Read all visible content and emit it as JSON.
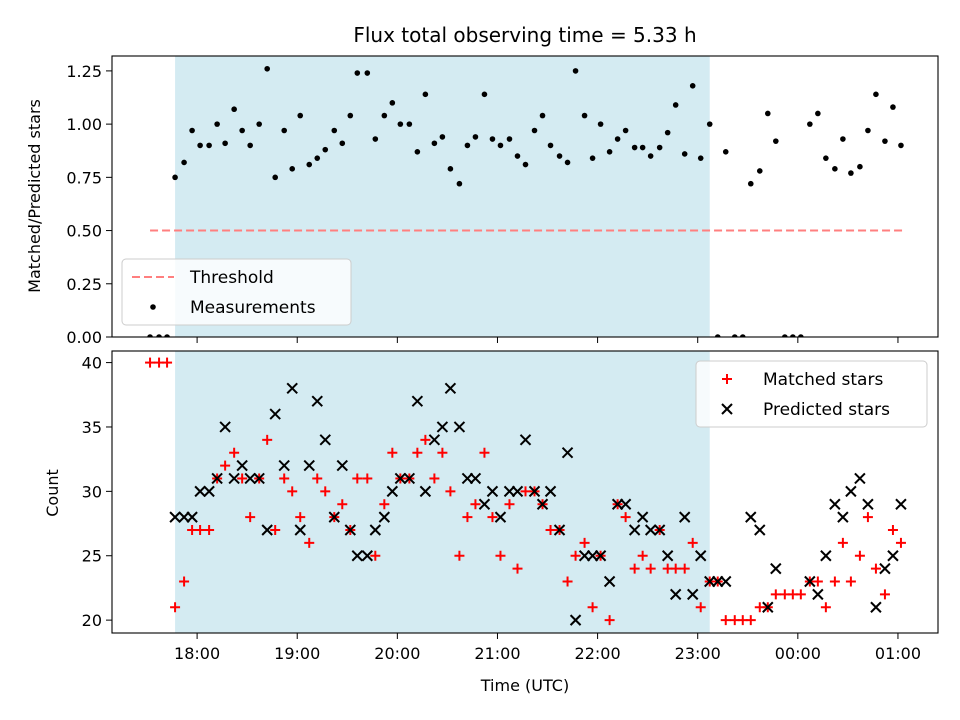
{
  "chart_data": [
    {
      "type": "scatter",
      "title": "Flux total observing time = 5.33 h",
      "ylabel": "Matched/Predicted stars",
      "ylim": [
        0,
        1.32
      ],
      "yticks": [
        0.0,
        0.25,
        0.5,
        0.75,
        1.0,
        1.25
      ],
      "ytick_labels": [
        "0.00",
        "0.25",
        "0.50",
        "0.75",
        "1.00",
        "1.25"
      ],
      "shaded_region": {
        "start": 17.78,
        "end": 23.12,
        "color": "#add8e6"
      },
      "threshold": {
        "value": 0.5,
        "start": 17.53,
        "end": 25.07,
        "color": "#ff7f7f",
        "label": "Threshold"
      },
      "legend": {
        "placement": "lower-left",
        "entries": [
          "Threshold",
          "Measurements"
        ]
      },
      "series": [
        {
          "name": "Measurements",
          "color": "#000000",
          "x": [
            17.53,
            17.62,
            17.7,
            17.78,
            17.87,
            17.95,
            18.03,
            18.12,
            18.2,
            18.28,
            18.37,
            18.45,
            18.53,
            18.62,
            18.7,
            18.78,
            18.87,
            18.95,
            19.03,
            19.12,
            19.2,
            19.28,
            19.37,
            19.45,
            19.53,
            19.6,
            19.7,
            19.78,
            19.87,
            19.95,
            20.03,
            20.12,
            20.2,
            20.28,
            20.37,
            20.45,
            20.53,
            20.62,
            20.7,
            20.78,
            20.87,
            20.95,
            21.03,
            21.12,
            21.2,
            21.28,
            21.37,
            21.45,
            21.53,
            21.62,
            21.7,
            21.78,
            21.87,
            21.95,
            22.03,
            22.12,
            22.2,
            22.28,
            22.37,
            22.45,
            22.53,
            22.62,
            22.7,
            22.78,
            22.87,
            22.95,
            23.03,
            23.12,
            23.2,
            23.28,
            23.37,
            23.45,
            23.53,
            23.62,
            23.7,
            23.78,
            23.87,
            23.95,
            24.03,
            24.12,
            24.2,
            24.28,
            24.37,
            24.45,
            24.53,
            24.62,
            24.7,
            24.78,
            24.87,
            24.95,
            25.03
          ],
          "y": [
            0,
            0,
            0,
            0.75,
            0.82,
            0.97,
            0.9,
            0.9,
            1.0,
            0.91,
            1.07,
            0.97,
            0.9,
            1.0,
            1.26,
            0.75,
            0.97,
            0.79,
            1.04,
            0.81,
            0.84,
            0.88,
            0.97,
            0.91,
            1.04,
            1.24,
            1.24,
            0.93,
            1.04,
            1.1,
            1.0,
            1.0,
            0.87,
            1.14,
            0.91,
            0.94,
            0.79,
            0.72,
            0.9,
            0.94,
            1.14,
            0.93,
            0.9,
            0.93,
            0.85,
            0.81,
            0.97,
            1.04,
            0.9,
            0.85,
            0.82,
            1.25,
            1.04,
            0.84,
            1.0,
            0.87,
            0.93,
            0.97,
            0.89,
            0.89,
            0.85,
            0.89,
            0.96,
            1.09,
            0.86,
            1.18,
            0.84,
            1.0,
            0,
            0.87,
            0,
            0,
            0.72,
            0.78,
            1.05,
            0.92,
            0,
            0,
            0,
            1.0,
            1.05,
            0.84,
            0.79,
            0.93,
            0.77,
            0.8,
            0.97,
            1.14,
            0.92,
            1.08,
            0.9
          ]
        }
      ]
    },
    {
      "type": "scatter",
      "xlabel": "Time (UTC)",
      "ylabel": "Count",
      "ylim": [
        19,
        40.9
      ],
      "yticks": [
        20,
        25,
        30,
        35,
        40
      ],
      "ytick_labels": [
        "20",
        "25",
        "30",
        "35",
        "40"
      ],
      "xlim": [
        17.15,
        25.4
      ],
      "xticks": [
        18,
        19,
        20,
        21,
        22,
        23,
        24,
        25
      ],
      "xtick_labels": [
        "18:00",
        "19:00",
        "20:00",
        "21:00",
        "22:00",
        "23:00",
        "00:00",
        "01:00"
      ],
      "shaded_region": {
        "start": 17.78,
        "end": 23.12,
        "color": "#add8e6"
      },
      "legend": {
        "placement": "top-right",
        "entries": [
          "Matched stars",
          "Predicted stars"
        ]
      },
      "series": [
        {
          "name": "Matched stars",
          "marker": "plus",
          "color": "#ff0000",
          "x": [
            17.53,
            17.62,
            17.7,
            17.78,
            17.87,
            17.95,
            18.03,
            18.12,
            18.2,
            18.28,
            18.37,
            18.45,
            18.53,
            18.62,
            18.7,
            18.78,
            18.87,
            18.95,
            19.03,
            19.12,
            19.2,
            19.28,
            19.37,
            19.45,
            19.53,
            19.6,
            19.7,
            19.78,
            19.87,
            19.95,
            20.03,
            20.12,
            20.2,
            20.28,
            20.37,
            20.45,
            20.53,
            20.62,
            20.7,
            20.78,
            20.87,
            20.95,
            21.03,
            21.12,
            21.2,
            21.28,
            21.37,
            21.45,
            21.53,
            21.62,
            21.7,
            21.78,
            21.87,
            21.95,
            22.03,
            22.12,
            22.2,
            22.28,
            22.37,
            22.45,
            22.53,
            22.62,
            22.7,
            22.78,
            22.87,
            22.95,
            23.03,
            23.12,
            23.2,
            23.28,
            23.37,
            23.45,
            23.53,
            23.62,
            23.7,
            23.78,
            23.87,
            23.95,
            24.03,
            24.12,
            24.2,
            24.28,
            24.37,
            24.45,
            24.53,
            24.62,
            24.7,
            24.78,
            24.87,
            24.95,
            25.03
          ],
          "y": [
            40,
            40,
            40,
            21,
            23,
            27,
            27,
            27,
            31,
            32,
            33,
            31,
            28,
            31,
            34,
            27,
            31,
            30,
            28,
            26,
            31,
            30,
            28,
            29,
            27,
            31,
            31,
            25,
            29,
            33,
            31,
            31,
            33,
            34,
            31,
            33,
            30,
            25,
            28,
            29,
            33,
            28,
            25,
            29,
            24,
            30,
            30,
            29,
            27,
            27,
            23,
            25,
            26,
            21,
            25,
            20,
            29,
            28,
            24,
            25,
            24,
            27,
            24,
            24,
            24,
            26,
            21,
            23,
            23,
            20,
            20,
            20,
            20,
            21,
            21,
            22,
            22,
            22,
            22,
            23,
            23,
            21,
            23,
            26,
            23,
            25,
            28,
            24,
            22,
            27,
            26
          ]
        },
        {
          "name": "Predicted stars",
          "marker": "x",
          "color": "#000000",
          "x": [
            17.78,
            17.87,
            17.95,
            18.03,
            18.12,
            18.2,
            18.28,
            18.37,
            18.45,
            18.53,
            18.62,
            18.7,
            18.78,
            18.87,
            18.95,
            19.03,
            19.12,
            19.2,
            19.28,
            19.37,
            19.45,
            19.53,
            19.6,
            19.7,
            19.78,
            19.87,
            19.95,
            20.03,
            20.12,
            20.2,
            20.28,
            20.37,
            20.45,
            20.53,
            20.62,
            20.7,
            20.78,
            20.87,
            20.95,
            21.03,
            21.12,
            21.2,
            21.28,
            21.37,
            21.45,
            21.53,
            21.62,
            21.7,
            21.78,
            21.87,
            21.95,
            22.03,
            22.12,
            22.2,
            22.28,
            22.37,
            22.45,
            22.53,
            22.62,
            22.7,
            22.78,
            22.87,
            22.95,
            23.03,
            23.12,
            23.2,
            23.28,
            23.53,
            23.62,
            23.7,
            23.78,
            24.12,
            24.2,
            24.28,
            24.37,
            24.45,
            24.53,
            24.62,
            24.7,
            24.78,
            24.87,
            24.95,
            25.03
          ],
          "y": [
            28,
            28,
            28,
            30,
            30,
            31,
            35,
            31,
            32,
            31,
            31,
            27,
            36,
            32,
            38,
            27,
            32,
            37,
            34,
            28,
            32,
            27,
            25,
            25,
            27,
            28,
            30,
            31,
            31,
            37,
            30,
            34,
            35,
            38,
            35,
            31,
            31,
            29,
            30,
            28,
            30,
            30,
            34,
            30,
            29,
            30,
            27,
            33,
            20,
            25,
            25,
            25,
            23,
            29,
            29,
            27,
            28,
            27,
            27,
            25,
            22,
            28,
            22,
            25,
            23,
            23,
            23,
            28,
            27,
            21,
            24,
            23,
            22,
            25,
            29,
            28,
            30,
            31,
            29,
            21,
            24,
            25,
            29
          ]
        }
      ]
    }
  ]
}
